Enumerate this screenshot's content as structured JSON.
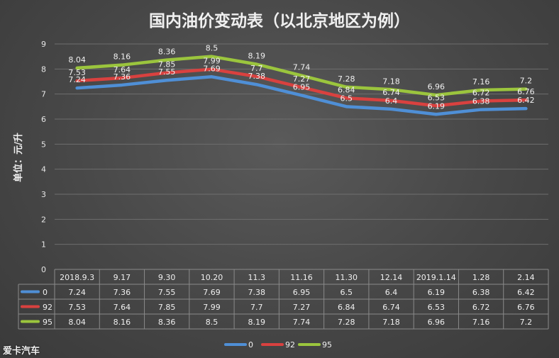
{
  "chart_data": {
    "type": "line",
    "title": "国内油价变动表（以北京地区为例）",
    "ylabel": "单位：元/升",
    "ylim": [
      0,
      9
    ],
    "yticks": [
      0,
      1,
      2,
      3,
      4,
      5,
      6,
      7,
      8,
      9
    ],
    "grid": true,
    "legend_placement": "bottom",
    "categories": [
      "2018.9.3",
      "9.17",
      "9.30",
      "10.20",
      "11.3",
      "11.16",
      "11.30",
      "12.14",
      "2019.1.14",
      "1.28",
      "2.14"
    ],
    "series": [
      {
        "name": "0",
        "color": "#4f8fd6",
        "values": [
          7.24,
          7.36,
          7.55,
          7.69,
          7.38,
          6.95,
          6.5,
          6.4,
          6.19,
          6.38,
          6.42
        ]
      },
      {
        "name": "92",
        "color": "#d9413f",
        "values": [
          7.53,
          7.64,
          7.85,
          7.99,
          7.7,
          7.27,
          6.84,
          6.74,
          6.53,
          6.72,
          6.76
        ]
      },
      {
        "name": "95",
        "color": "#9bc53d",
        "values": [
          8.04,
          8.16,
          8.36,
          8.5,
          8.19,
          7.74,
          7.28,
          7.18,
          6.96,
          7.16,
          7.2
        ]
      }
    ]
  },
  "watermark": "爱卡汽车"
}
